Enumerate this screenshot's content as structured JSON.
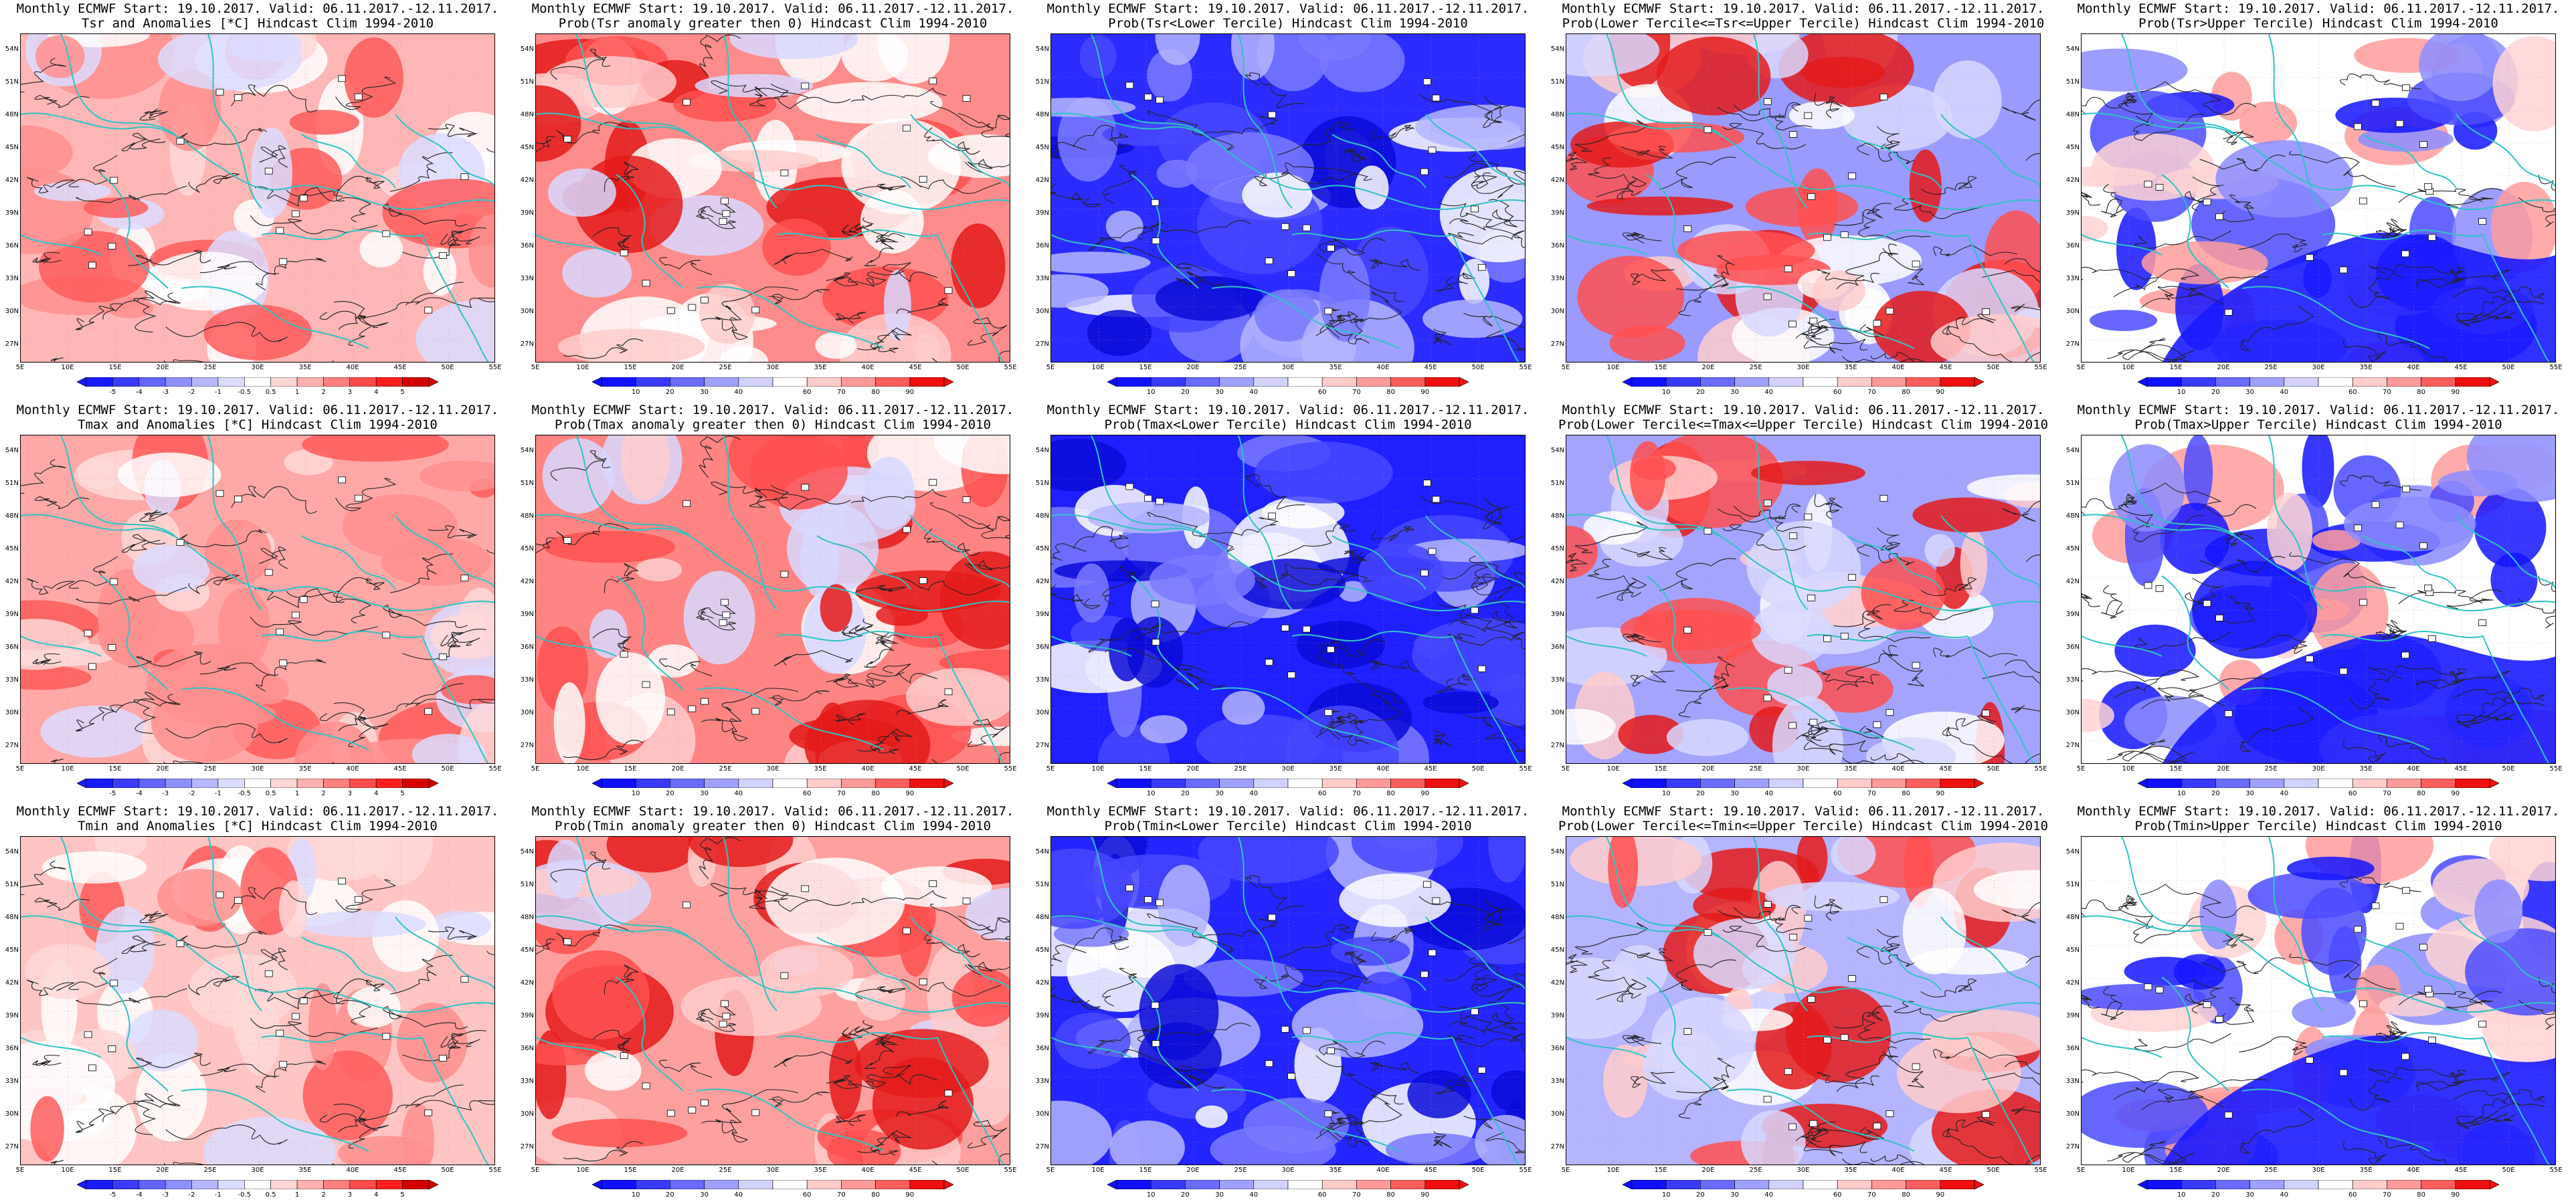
{
  "map_extent": {
    "lon": [
      5,
      55
    ],
    "lat": [
      25,
      55
    ]
  },
  "lat_labels": [
    "54N",
    "51N",
    "48N",
    "45N",
    "42N",
    "39N",
    "36N",
    "33N",
    "30N",
    "27N"
  ],
  "lon_labels": [
    "5E",
    "10E",
    "15E",
    "20E",
    "25E",
    "30E",
    "35E",
    "40E",
    "45E",
    "50E",
    "55E"
  ],
  "colorbars": {
    "anomaly": {
      "ticks": [
        "-5",
        "-4",
        "-3",
        "-2",
        "-1",
        "-0.5",
        "0.5",
        "1",
        "2",
        "3",
        "4",
        "5"
      ],
      "colors": [
        "#1a1aff",
        "#3b3bff",
        "#6464ff",
        "#8f8fff",
        "#b7b7ff",
        "#dcdcff",
        "#ffffff",
        "#ffd6d6",
        "#ffb0b0",
        "#ff8080",
        "#ff4d4d",
        "#ff1f1f",
        "#d40000"
      ]
    },
    "probability": {
      "ticks": [
        "10",
        "20",
        "30",
        "40",
        "60",
        "70",
        "80",
        "90"
      ],
      "colors": [
        "#1010ff",
        "#3a3aff",
        "#6b6bff",
        "#a0a0ff",
        "#d2d2ff",
        "#ffffff",
        "#ffcccc",
        "#ff9a9a",
        "#ff5e5e",
        "#ee1010"
      ]
    }
  },
  "panels": [
    {
      "title1": "Monthly ECMWF Start: 19.10.2017. Valid: 06.11.2017.-12.11.2017.",
      "title2": "Tsr and Anomalies [*C] Hindcast Clim 1994-2010",
      "scale": "anomaly",
      "base": "#ffb6b6"
    },
    {
      "title1": "Monthly ECMWF Start: 19.10.2017. Valid: 06.11.2017.-12.11.2017.",
      "title2": "Prob(Tsr anomaly greater then 0) Hindcast Clim 1994-2010",
      "scale": "probability",
      "base": "#ff8c8c"
    },
    {
      "title1": "Monthly ECMWF Start: 19.10.2017. Valid: 06.11.2017.-12.11.2017.",
      "title2": "Prob(Tsr<Lower Tercile) Hindcast Clim 1994-2010",
      "scale": "probability",
      "base": "#2b2bff"
    },
    {
      "title1": "Monthly ECMWF Start: 19.10.2017. Valid: 06.11.2017.-12.11.2017.",
      "title2": "Prob(Lower Tercile<=Tsr<=Upper Tercile) Hindcast Clim 1994-2010",
      "scale": "probability",
      "base": "#9a9aff"
    },
    {
      "title1": "Monthly ECMWF Start: 19.10.2017. Valid: 06.11.2017.-12.11.2017.",
      "title2": "Prob(Tsr>Upper Tercile) Hindcast Clim 1994-2010",
      "scale": "probability",
      "base": "#ffffff"
    },
    {
      "title1": "Monthly ECMWF Start: 19.10.2017. Valid: 06.11.2017.-12.11.2017.",
      "title2": "Tmax and Anomalies [*C] Hindcast Clim 1994-2010",
      "scale": "anomaly",
      "base": "#ffa8a8"
    },
    {
      "title1": "Monthly ECMWF Start: 19.10.2017. Valid: 06.11.2017.-12.11.2017.",
      "title2": "Prob(Tmax anomaly greater then 0) Hindcast Clim 1994-2010",
      "scale": "probability",
      "base": "#ff8484"
    },
    {
      "title1": "Monthly ECMWF Start: 19.10.2017. Valid: 06.11.2017.-12.11.2017.",
      "title2": "Prob(Tmax<Lower Tercile) Hindcast Clim 1994-2010",
      "scale": "probability",
      "base": "#1f1fff"
    },
    {
      "title1": "Monthly ECMWF Start: 19.10.2017. Valid: 06.11.2017.-12.11.2017.",
      "title2": "Prob(Lower Tercile<=Tmax<=Upper Tercile) Hindcast Clim 1994-2010",
      "scale": "probability",
      "base": "#a4a4ff"
    },
    {
      "title1": "Monthly ECMWF Start: 19.10.2017. Valid: 06.11.2017.-12.11.2017.",
      "title2": "Prob(Tmax>Upper Tercile) Hindcast Clim 1994-2010",
      "scale": "probability",
      "base": "#ffffff"
    },
    {
      "title1": "Monthly ECMWF Start: 19.10.2017. Valid: 06.11.2017.-12.11.2017.",
      "title2": "Tmin and Anomalies [*C] Hindcast Clim 1994-2010",
      "scale": "anomaly",
      "base": "#ffc4c4"
    },
    {
      "title1": "Monthly ECMWF Start: 19.10.2017. Valid: 06.11.2017.-12.11.2017.",
      "title2": "Prob(Tmin anomaly greater then 0) Hindcast Clim 1994-2010",
      "scale": "probability",
      "base": "#ffa0a0"
    },
    {
      "title1": "Monthly ECMWF Start: 19.10.2017. Valid: 06.11.2017.-12.11.2017.",
      "title2": "Prob(Tmin<Lower Tercile) Hindcast Clim 1994-2010",
      "scale": "probability",
      "base": "#2424ff"
    },
    {
      "title1": "Monthly ECMWF Start: 19.10.2017. Valid: 06.11.2017.-12.11.2017.",
      "title2": "Prob(Lower Tercile<=Tmin<=Upper Tercile) Hindcast Clim 1994-2010",
      "scale": "probability",
      "base": "#b4b4ff"
    },
    {
      "title1": "Monthly ECMWF Start: 19.10.2017. Valid: 06.11.2017.-12.11.2017.",
      "title2": "Prob(Tmin>Upper Tercile) Hindcast Clim 1994-2010",
      "scale": "probability",
      "base": "#ffffff"
    }
  ],
  "colors": {
    "coastline": "#2ec4c4",
    "contour": "#222222",
    "cool_patch": "#c8c8ff",
    "warm_patch": "#ff5a5a",
    "deep_blue": "#0b0bd0"
  }
}
